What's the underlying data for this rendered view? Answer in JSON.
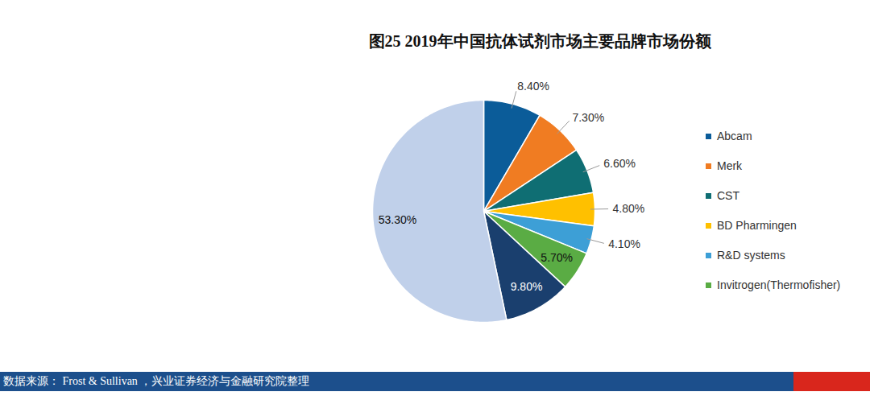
{
  "chart_data": {
    "type": "pie",
    "title": "图25 2019年中国抗体试剂市场主要品牌市场份额",
    "categories": [
      "Abcam",
      "Merk",
      "CST",
      "BD Pharmingen",
      "R&D systems",
      "Invitrogen(Thermofisher)",
      null,
      null
    ],
    "values": [
      8.4,
      7.3,
      6.6,
      4.8,
      4.1,
      5.7,
      9.8,
      53.3
    ],
    "value_labels": [
      "8.40%",
      "7.30%",
      "6.60%",
      "4.80%",
      "4.10%",
      "5.70%",
      "9.80%",
      "53.30%"
    ],
    "colors": [
      "#0b5c99",
      "#f07c22",
      "#0f6e73",
      "#ffc000",
      "#3d9fd6",
      "#5aac44",
      "#1a3f6e",
      "#c0d0ea"
    ],
    "data_labels": true,
    "legend": "right",
    "tick_labels": false,
    "caption": "数据来源： Frost & Sullivan ，兴业证券经济与金融研究院整理"
  }
}
